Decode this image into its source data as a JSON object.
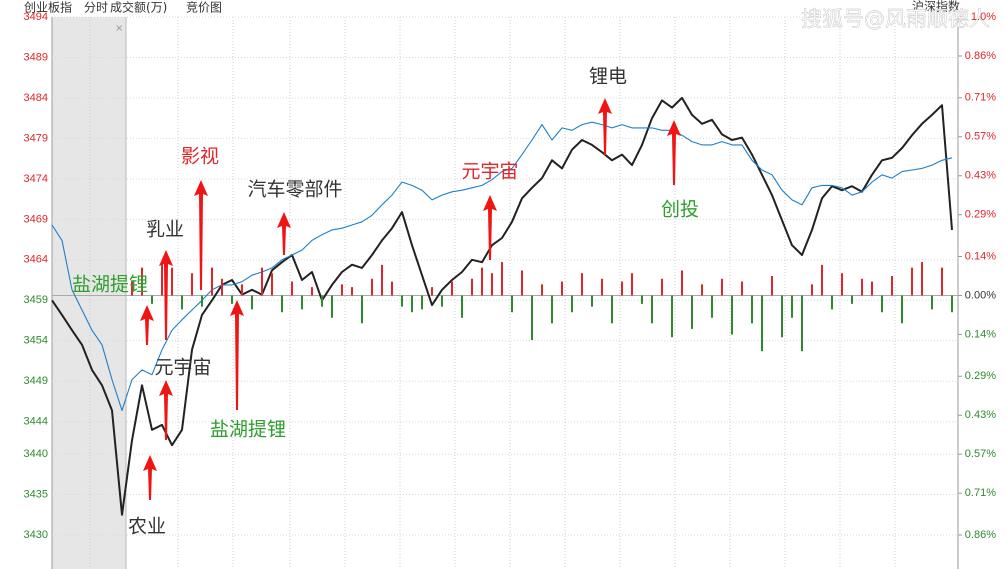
{
  "header": {
    "name": "创业板指",
    "period": "分时",
    "indicator": "成交额(万)",
    "mode": "竞价图",
    "watermark": "搜狐号@风雨顺德人",
    "corner": "沪深指数"
  },
  "chart_data": {
    "type": "line",
    "ylim": [
      3430,
      3494
    ],
    "yticks": [
      3430,
      3435,
      3440,
      3444,
      3449,
      3454,
      3459,
      3464,
      3469,
      3474,
      3479,
      3484,
      3489,
      3494
    ],
    "y2lim": [
      -0.86,
      1.0
    ],
    "y2ticks": [
      {
        "value": -0.86,
        "label": "0.86%"
      },
      {
        "value": -0.71,
        "label": "0.71%"
      },
      {
        "value": -0.57,
        "label": "0.57%"
      },
      {
        "value": -0.43,
        "label": "0.43%"
      },
      {
        "value": -0.29,
        "label": "0.29%"
      },
      {
        "value": -0.14,
        "label": "0.14%"
      },
      {
        "value": 0,
        "label": "0.00%"
      },
      {
        "value": 0.14,
        "label": "0.14%"
      },
      {
        "value": 0.29,
        "label": "0.29%"
      },
      {
        "value": 0.43,
        "label": "0.43%"
      },
      {
        "value": 0.57,
        "label": "0.57%"
      },
      {
        "value": 0.71,
        "label": "0.71%"
      },
      {
        "value": 0.86,
        "label": "0.86%"
      },
      {
        "value": 1.0,
        "label": "1.0%"
      }
    ],
    "up_color": "#e0262a",
    "down_color": "#2f8a2f",
    "series": [
      {
        "color": "#222222",
        "values": [
          3459.0,
          3457.2,
          3455.3,
          3453.5,
          3450.4,
          3448.5,
          3445.4,
          3432.5,
          3441.7,
          3448.5,
          3443.0,
          3443.6,
          3441.1,
          3443.0,
          3452.9,
          3457.2,
          3459.0,
          3460.9,
          3461.5,
          3459.7,
          3460.3,
          3459.7,
          3462.7,
          3463.7,
          3464.6,
          3461.5,
          3462.5,
          3459.0,
          3460.9,
          3462.5,
          3463.4,
          3463.0,
          3464.6,
          3466.4,
          3467.9,
          3469.9,
          3465.8,
          3462.1,
          3458.4,
          3460.3,
          3461.5,
          3462.5,
          3464.0,
          3463.7,
          3465.8,
          3466.7,
          3468.7,
          3471.6,
          3472.9,
          3474.1,
          3476.3,
          3475.3,
          3477.6,
          3478.8,
          3478.2,
          3477.3,
          3476.3,
          3477.0,
          3475.7,
          3478.2,
          3481.5,
          3483.7,
          3482.8,
          3484.0,
          3481.9,
          3480.8,
          3481.3,
          3479.5,
          3478.8,
          3479.1,
          3477.0,
          3474.5,
          3472.0,
          3468.9,
          3465.8,
          3464.6,
          3467.7,
          3471.6,
          3473.1,
          3472.6,
          3473.1,
          3472.4,
          3474.5,
          3476.3,
          3476.6,
          3477.8,
          3479.4,
          3480.8,
          3481.9,
          3483.1,
          3467.7
        ]
      },
      {
        "color": "#1f7fc8",
        "values": [
          3468.3,
          3466.4,
          3460.3,
          3457.8,
          3455.3,
          3453.5,
          3449.2,
          3445.4,
          3449.2,
          3450.4,
          3449.8,
          3452.9,
          3455.3,
          3456.6,
          3457.8,
          3459.0,
          3460.3,
          3460.9,
          3460.9,
          3461.3,
          3462.1,
          3462.5,
          3463.0,
          3464.0,
          3464.6,
          3465.2,
          3466.4,
          3467.1,
          3467.7,
          3467.9,
          3468.3,
          3468.7,
          3469.5,
          3470.8,
          3472.0,
          3473.6,
          3473.2,
          3472.6,
          3471.4,
          3472.0,
          3472.4,
          3472.6,
          3472.9,
          3473.2,
          3473.9,
          3474.9,
          3475.3,
          3477.0,
          3478.8,
          3480.7,
          3478.8,
          3480.3,
          3480.0,
          3480.7,
          3481.0,
          3480.7,
          3480.3,
          3480.7,
          3480.3,
          3480.3,
          3480.3,
          3480.0,
          3480.0,
          3479.4,
          3478.6,
          3478.2,
          3478.2,
          3478.6,
          3478.2,
          3478.2,
          3476.3,
          3475.1,
          3474.5,
          3472.6,
          3471.4,
          3470.8,
          3472.9,
          3473.2,
          3473.2,
          3472.9,
          3472.0,
          3472.4,
          3473.6,
          3474.5,
          3474.1,
          3474.9,
          3475.1,
          3475.3,
          3475.7,
          3476.3,
          3476.6
        ]
      },
      {
        "type": "bar",
        "axis": "y2",
        "values": [
          null,
          null,
          null,
          null,
          null,
          null,
          null,
          null,
          0.05,
          0.1,
          -0.03,
          0.12,
          0.1,
          -0.05,
          0.08,
          -0.04,
          0.1,
          0.06,
          -0.03,
          0.04,
          -0.05,
          0.1,
          0.08,
          -0.06,
          0.05,
          -0.05,
          0.03,
          -0.04,
          -0.08,
          0.04,
          0.03,
          -0.1,
          0.06,
          0.11,
          0.05,
          -0.04,
          -0.06,
          -0.05,
          0.03,
          -0.04,
          0.05,
          -0.08,
          0.06,
          0.1,
          0.08,
          0.12,
          -0.06,
          0.09,
          -0.16,
          0.04,
          -0.1,
          0.05,
          -0.06,
          0.08,
          -0.04,
          0.06,
          -0.1,
          0.05,
          0.08,
          -0.03,
          -0.1,
          0.06,
          -0.15,
          0.09,
          -0.12,
          0.04,
          -0.08,
          0.06,
          -0.14,
          0.05,
          -0.1,
          -0.2,
          0.07,
          -0.15,
          -0.08,
          -0.2,
          0.04,
          0.11,
          -0.05,
          0.08,
          -0.03,
          0.06,
          0.05,
          -0.06,
          0.07,
          -0.1,
          0.1,
          0.12,
          -0.05,
          0.1,
          -0.06
        ]
      }
    ],
    "annotations": [
      {
        "text": "盐湖提锂",
        "color": "#2e9e2e"
      },
      {
        "text": "乳业",
        "color": "#333333"
      },
      {
        "text": "影视",
        "color": "#e0262a"
      },
      {
        "text": "元宇宙",
        "color": "#333333"
      },
      {
        "text": "盐湖提锂",
        "color": "#2e9e2e"
      },
      {
        "text": "农业",
        "color": "#333333"
      },
      {
        "text": "汽车零部件",
        "color": "#333333"
      },
      {
        "text": "元宇宙",
        "color": "#e0262a"
      },
      {
        "text": "锂电",
        "color": "#333333"
      },
      {
        "text": "创投",
        "color": "#2e9e2e"
      }
    ]
  }
}
